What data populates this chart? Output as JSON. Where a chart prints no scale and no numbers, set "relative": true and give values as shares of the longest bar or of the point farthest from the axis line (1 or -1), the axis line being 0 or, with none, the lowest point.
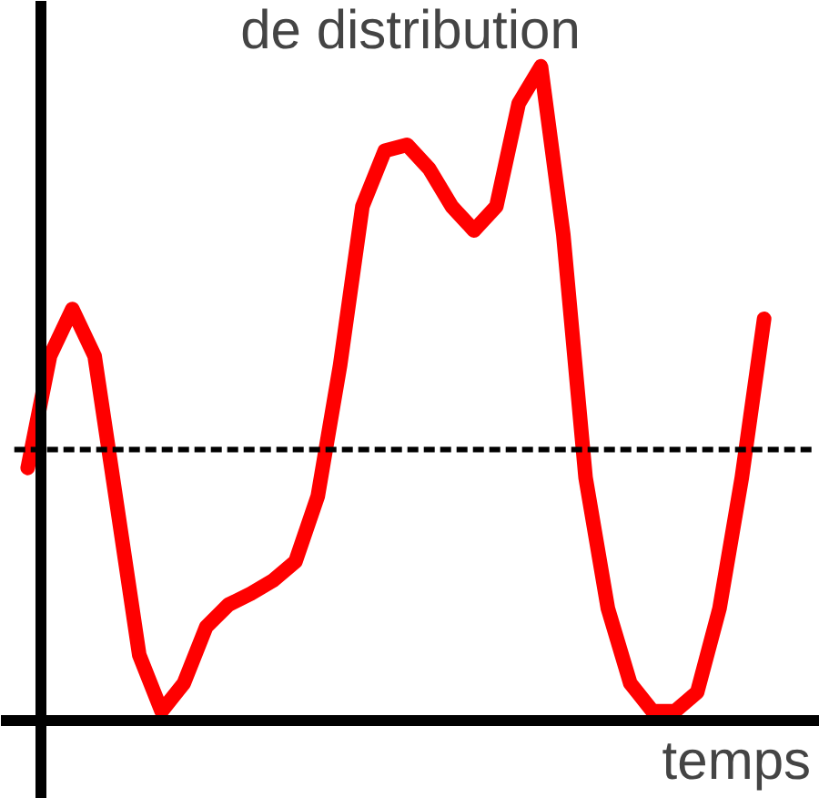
{
  "chart_data": {
    "type": "line",
    "title": "de distribution",
    "xlabel": "temps",
    "relative": true,
    "categories": [
      null,
      null,
      null,
      null,
      null,
      null,
      null,
      null,
      null,
      null,
      null,
      null,
      null,
      null,
      null,
      null,
      null,
      null,
      null,
      null,
      null,
      null,
      null,
      null,
      null,
      null,
      null,
      null,
      null,
      null,
      null,
      null,
      null,
      null
    ],
    "series": [
      {
        "color": "#ff0000",
        "values": [
          0.386,
          0.557,
          0.629,
          0.557,
          0.329,
          0.1,
          0.014,
          0.057,
          0.143,
          0.177,
          0.194,
          0.214,
          0.243,
          0.343,
          0.543,
          0.786,
          0.871,
          0.88,
          0.843,
          0.786,
          0.749,
          0.786,
          0.943,
          1.0,
          0.743,
          0.371,
          0.171,
          0.057,
          0.014,
          0.014,
          0.043,
          0.171,
          0.371,
          0.614
        ]
      }
    ],
    "ref_lines": [
      {
        "axis": "y",
        "value": 0.414,
        "color": "#000000",
        "line_style": "dashed"
      }
    ],
    "marker": "none",
    "line_style": "solid"
  }
}
